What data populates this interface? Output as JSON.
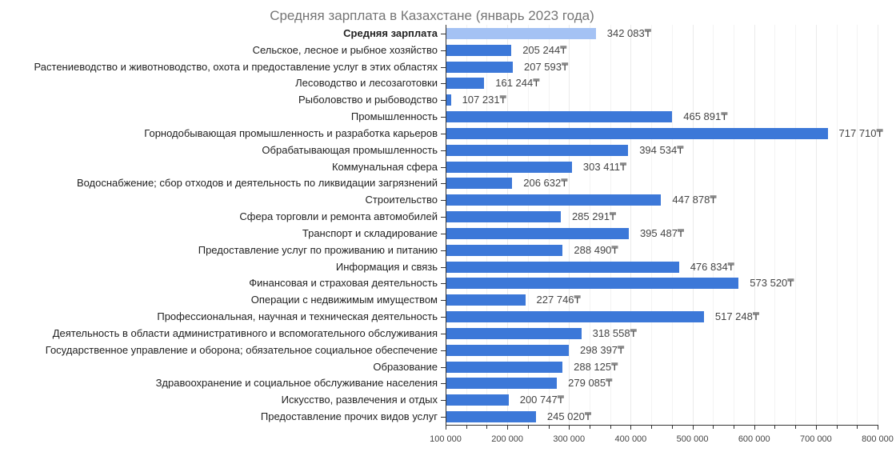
{
  "chart_data": {
    "type": "bar",
    "orientation": "horizontal",
    "title": "Средняя зарплата в Казахстане (январь 2023 года)",
    "xlabel": "",
    "ylabel": "",
    "xlim": [
      100000,
      800000
    ],
    "x_ticks": [
      "100 000",
      "200 000",
      "300 000",
      "400 000",
      "500 000",
      "600 000",
      "700 000",
      "800 000"
    ],
    "grid": true,
    "legend": null,
    "currency_symbol": "₸",
    "colors": {
      "highlight": "#a4c2f4",
      "default": "#3c78d8"
    },
    "categories": [
      "Средняя зарплата",
      "Сельское, лесное и рыбное хозяйство",
      "Растениеводство и животноводство, охота и предоставление услуг в этих областях",
      "Лесоводство и лесозаготовки",
      "Рыболовство и рыбоводство",
      "Промышленность",
      "Горнодобывающая промышленность и разработка карьеров",
      "Обрабатывающая промышленность",
      "Коммунальная сфера",
      "Водоснабжение; сбор отходов и деятельность по ликвидации загрязнений",
      "Строительство",
      "Сфера торговли и ремонта автомобилей",
      "Транспорт и складирование",
      "Предоставление услуг по проживанию и питанию",
      "Информация и связь",
      "Финансовая и страховая деятельность",
      "Операции с недвижимым имуществом",
      "Профессиональная, научная и техническая деятельность",
      "Деятельность в области административного и вспомогательного обслуживания",
      "Государственное управление и оборона; обязательное  социальное обеспечение",
      "Образование",
      "Здравоохранение и социальное обслуживание населения",
      "Искусство, развлечения и отдых",
      "Предоставление прочих видов услуг"
    ],
    "values": [
      342083,
      205244,
      207593,
      161244,
      107231,
      465891,
      717710,
      394534,
      303411,
      206632,
      447878,
      285291,
      395487,
      288490,
      476834,
      573520,
      227746,
      517248,
      318558,
      298397,
      288125,
      279085,
      200747,
      245020
    ],
    "value_labels": [
      "342 083₸",
      "205 244₸",
      "207 593₸",
      "161 244₸",
      "107 231₸",
      "465 891₸",
      "717 710₸",
      "394 534₸",
      "303 411₸",
      "206 632₸",
      "447 878₸",
      "285 291₸",
      "395 487₸",
      "288 490₸",
      "476 834₸",
      "573 520₸",
      "227 746₸",
      "517 248₸",
      "318 558₸",
      "298 397₸",
      "288 125₸",
      "279 085₸",
      "200 747₸",
      "245 020₸"
    ],
    "highlighted": [
      0
    ]
  }
}
